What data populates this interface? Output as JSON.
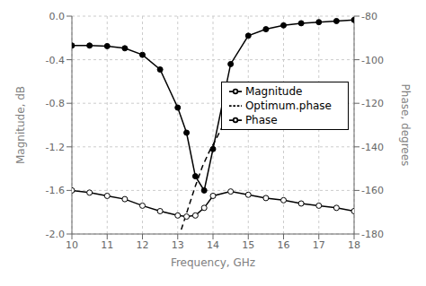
{
  "chart_data": {
    "type": "line",
    "x": [
      10,
      10.5,
      11,
      11.5,
      12,
      12.5,
      13,
      13.25,
      13.5,
      13.75,
      14,
      14.5,
      15,
      15.5,
      16,
      16.5,
      17,
      17.5,
      18
    ],
    "series": [
      {
        "name": "Magnitude",
        "color": "#000000",
        "marker": "circle",
        "line_style": "solid",
        "values": [
          -0.27,
          -0.27,
          -0.275,
          -0.295,
          -0.355,
          -0.49,
          -0.84,
          -1.07,
          -1.47,
          -1.6,
          -1.22,
          -0.44,
          -0.18,
          -0.12,
          -0.085,
          -0.065,
          -0.055,
          -0.045,
          -0.035
        ]
      },
      {
        "name": "Phase",
        "color": "#000000",
        "marker": "circle_open",
        "line_style": "solid",
        "axis": "y2",
        "values": [
          -160,
          -161,
          -162.5,
          -164,
          -167,
          -169.5,
          -171.5,
          -172.0,
          -171.5,
          -168,
          -162.5,
          -160.5,
          -162,
          -163.5,
          -164.5,
          -166,
          -167,
          -168,
          -169.5
        ]
      },
      {
        "name": "Optimum.phase",
        "color": "#000000",
        "marker": "none",
        "line_style": "dashed",
        "axis": "y2",
        "x": [
          13.1,
          13.3,
          13.5,
          13.7,
          13.9,
          14.1,
          14.35
        ],
        "values": [
          -178,
          -168,
          -158,
          -149,
          -142,
          -136,
          -128
        ]
      }
    ],
    "xlim": [
      10,
      18
    ],
    "xticks": [
      10,
      11,
      12,
      13,
      14,
      15,
      16,
      17,
      18
    ],
    "ylim": [
      -2.0,
      0.0
    ],
    "yticks": [
      {
        "value": -2.0,
        "label": "-2.0"
      },
      -1.6,
      -1.2,
      -0.8,
      -0.4,
      {
        "value": 0.0,
        "label": "0.0"
      }
    ],
    "y2lim": [
      -180,
      -80
    ],
    "y2ticks": [
      -180,
      -160,
      -140,
      -120,
      -100,
      -80
    ],
    "xlabel": "Frequency, GHz",
    "ylabel": "Magnitude, dB",
    "y2label": "Phase, degrees",
    "grid": true,
    "legend": "upper right"
  }
}
